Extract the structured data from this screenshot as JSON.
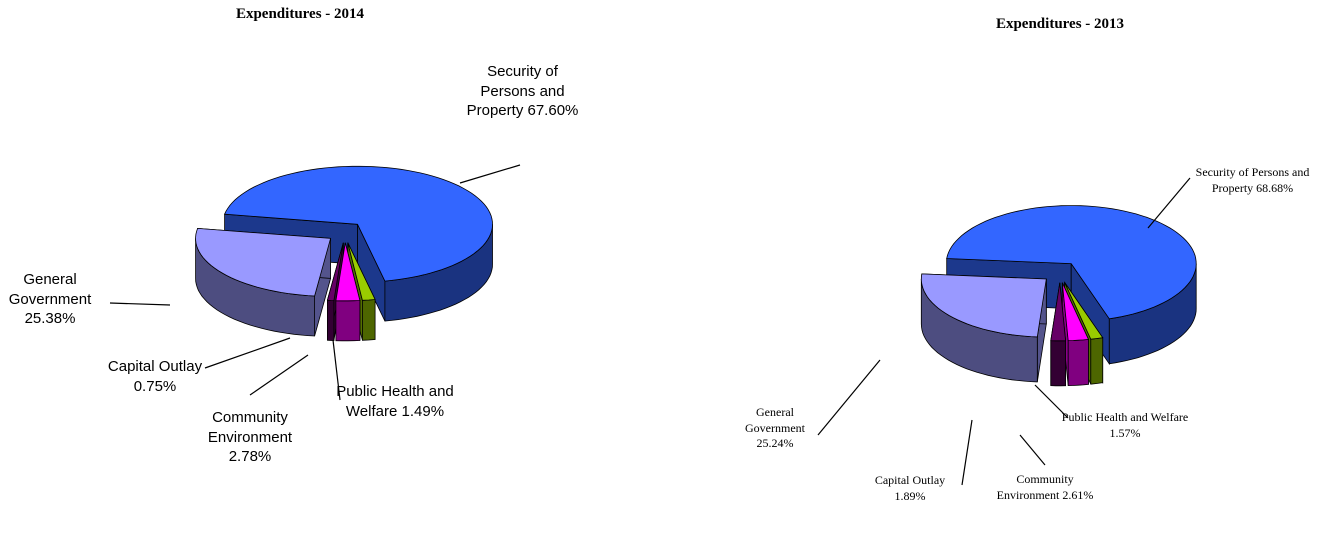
{
  "chart_data": [
    {
      "type": "pie",
      "title": "Expenditures - 2014",
      "categories": [
        "Security of Persons and Property",
        "Public Health and Welfare",
        "Community Environment",
        "Capital Outlay",
        "General Government"
      ],
      "values": [
        67.6,
        1.49,
        2.78,
        0.75,
        25.38
      ],
      "value_labels": [
        "67.60%",
        "1.49%",
        "2.78%",
        "0.75%",
        "25.38%"
      ],
      "colors": [
        "#3366ff",
        "#99cc00",
        "#ff00ff",
        "#660066",
        "#9999ff"
      ]
    },
    {
      "type": "pie",
      "title": "Expenditures - 2013",
      "categories": [
        "Security of Persons and Property",
        "Public Health and Welfare",
        "Community Environment",
        "Capital Outlay",
        "General Government"
      ],
      "values": [
        68.68,
        1.57,
        2.61,
        1.89,
        25.24
      ],
      "value_labels": [
        "68.68%",
        "1.57%",
        "2.61%",
        "1.89%",
        "25.24%"
      ],
      "colors": [
        "#3366ff",
        "#99cc00",
        "#ff00ff",
        "#660066",
        "#9999ff"
      ]
    }
  ]
}
